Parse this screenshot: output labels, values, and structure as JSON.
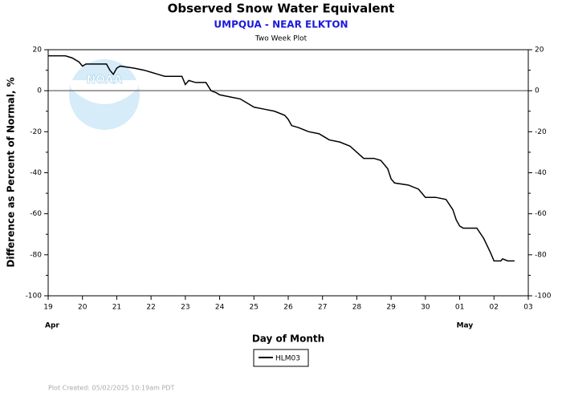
{
  "chart_data": {
    "type": "line",
    "title": "Observed Snow Water Equivalent",
    "subtitle": "UMPQUA - NEAR ELKTON",
    "plot_label": "Two Week Plot",
    "watermark": "NOAA",
    "y_label": "Difference as Percent of Normal, %",
    "x_label": "Day of Month",
    "footer": "Plot Created: 05/02/2025 10:19am PDT",
    "xlim": [
      0,
      14
    ],
    "xticks": [
      {
        "value": 0,
        "label": "19"
      },
      {
        "value": 1,
        "label": "20"
      },
      {
        "value": 2,
        "label": "21"
      },
      {
        "value": 3,
        "label": "22"
      },
      {
        "value": 4,
        "label": "23"
      },
      {
        "value": 5,
        "label": "24"
      },
      {
        "value": 6,
        "label": "25"
      },
      {
        "value": 7,
        "label": "26"
      },
      {
        "value": 8,
        "label": "27"
      },
      {
        "value": 9,
        "label": "28"
      },
      {
        "value": 10,
        "label": "29"
      },
      {
        "value": 11,
        "label": "30"
      },
      {
        "value": 12,
        "label": "01"
      },
      {
        "value": 13,
        "label": "02"
      },
      {
        "value": 14,
        "label": "03"
      }
    ],
    "month_labels": [
      {
        "value": 0,
        "label": "Apr"
      },
      {
        "value": 12,
        "label": "May"
      }
    ],
    "ylim": [
      -100,
      20
    ],
    "yticks": [
      -100,
      -80,
      -60,
      -40,
      -20,
      0,
      20
    ],
    "y_minor_ticks": [
      -90,
      -70,
      -50,
      -30,
      -10,
      10
    ],
    "zero_line": 0,
    "series": [
      {
        "name": "HLM03",
        "color": "#000000",
        "x": [
          0,
          0.5,
          0.7,
          0.9,
          1.0,
          1.1,
          1.5,
          1.7,
          1.8,
          1.9,
          2.0,
          2.1,
          2.5,
          2.8,
          3.0,
          3.2,
          3.4,
          3.6,
          3.9,
          4.0,
          4.1,
          4.3,
          4.6,
          4.75,
          4.9,
          5.0,
          5.3,
          5.6,
          5.8,
          6.0,
          6.3,
          6.6,
          6.9,
          7.0,
          7.1,
          7.3,
          7.6,
          7.9,
          8.0,
          8.2,
          8.5,
          8.8,
          9.0,
          9.2,
          9.5,
          9.7,
          9.9,
          10.0,
          10.1,
          10.5,
          10.8,
          11.0,
          11.3,
          11.6,
          11.8,
          11.9,
          12.0,
          12.1,
          12.5,
          12.7,
          12.9,
          13.0,
          13.2,
          13.25,
          13.4,
          13.6
        ],
        "values": [
          17,
          17,
          16,
          14,
          12,
          13,
          13,
          13,
          10,
          8,
          11,
          12,
          11,
          10,
          9,
          8,
          7,
          7,
          7,
          3,
          5,
          4,
          4,
          0,
          -1,
          -2,
          -3,
          -4,
          -6,
          -8,
          -9,
          -10,
          -12,
          -14,
          -17,
          -18,
          -20,
          -21,
          -22,
          -24,
          -25,
          -27,
          -30,
          -33,
          -33,
          -34,
          -38,
          -43,
          -45,
          -46,
          -48,
          -52,
          -52,
          -53,
          -58,
          -63,
          -66,
          -67,
          -67,
          -72,
          -79,
          -83,
          -83,
          -82,
          -83,
          -83
        ]
      }
    ]
  }
}
